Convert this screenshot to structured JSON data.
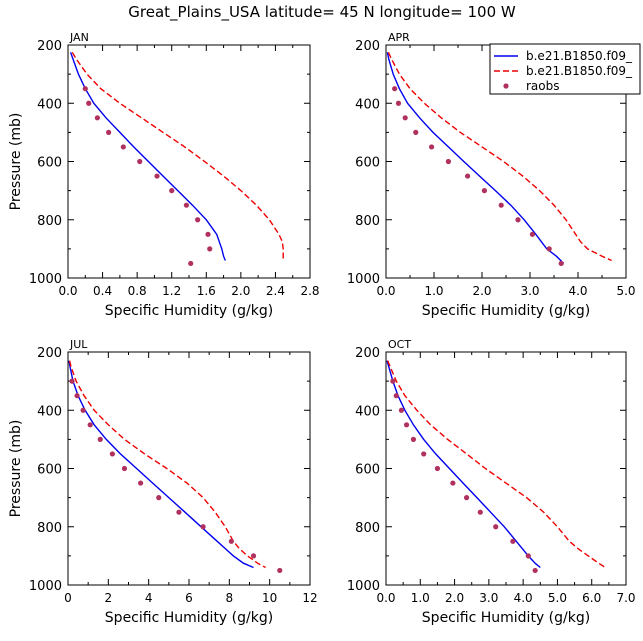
{
  "title": "Great_Plains_USA   latitude= 45 N longitude= 100 W",
  "legend": {
    "placement": "top-right of APR panel",
    "entries": [
      {
        "label": "b.e21.B1850.f09_",
        "series": "model1",
        "color": "#0000ee",
        "style": "solid"
      },
      {
        "label": "b.e21.B1850.f09_",
        "series": "model2",
        "color": "#ee0000",
        "style": "dashed"
      },
      {
        "label": "raobs",
        "series": "raobs",
        "color": "#b03060",
        "style": "markers"
      }
    ]
  },
  "chart_data": [
    {
      "type": "line",
      "panel": "JAN",
      "xlabel": "Specific Humidity (g/kg)",
      "ylabel": "Pressure (mb)",
      "xlim": [
        0,
        2.8
      ],
      "ylim": [
        1000,
        200
      ],
      "xticks": [
        "0.0",
        "0.4",
        "0.8",
        "1.2",
        "1.6",
        "2.0",
        "2.4",
        "2.8"
      ],
      "xtick_values": [
        0,
        0.4,
        0.8,
        1.2,
        1.6,
        2.0,
        2.4,
        2.8
      ],
      "yticks": [
        "200",
        "400",
        "600",
        "800",
        "1000"
      ],
      "ytick_values": [
        200,
        400,
        600,
        800,
        1000
      ],
      "series": [
        {
          "name": "model1",
          "pressure": [
            225,
            250,
            300,
            350,
            400,
            450,
            500,
            550,
            600,
            650,
            700,
            750,
            800,
            850,
            900,
            925,
            940
          ],
          "values": [
            0.03,
            0.06,
            0.12,
            0.2,
            0.3,
            0.44,
            0.6,
            0.76,
            0.93,
            1.1,
            1.27,
            1.44,
            1.6,
            1.72,
            1.78,
            1.8,
            1.82
          ]
        },
        {
          "name": "model2",
          "pressure": [
            225,
            250,
            300,
            350,
            400,
            450,
            500,
            550,
            600,
            650,
            700,
            750,
            800,
            850,
            875,
            900,
            940
          ],
          "values": [
            0.05,
            0.1,
            0.22,
            0.38,
            0.6,
            0.85,
            1.1,
            1.35,
            1.58,
            1.8,
            2.0,
            2.18,
            2.33,
            2.44,
            2.48,
            2.49,
            2.49
          ]
        },
        {
          "name": "raobs",
          "pressure": [
            350,
            400,
            450,
            500,
            550,
            600,
            650,
            700,
            750,
            800,
            850,
            900,
            950
          ],
          "values": [
            0.2,
            0.24,
            0.34,
            0.47,
            0.64,
            0.83,
            1.03,
            1.2,
            1.37,
            1.5,
            1.62,
            1.64,
            1.42
          ]
        }
      ]
    },
    {
      "type": "line",
      "panel": "APR",
      "xlabel": "Specific Humidity (g/kg)",
      "ylabel": "",
      "xlim": [
        0,
        5.0
      ],
      "ylim": [
        1000,
        200
      ],
      "xticks": [
        "0.0",
        "1.0",
        "2.0",
        "3.0",
        "4.0",
        "5.0"
      ],
      "xtick_values": [
        0,
        1,
        2,
        3,
        4,
        5
      ],
      "yticks": [
        "200",
        "400",
        "600",
        "800",
        "1000"
      ],
      "ytick_values": [
        200,
        400,
        600,
        800,
        1000
      ],
      "series": [
        {
          "name": "model1",
          "pressure": [
            225,
            250,
            300,
            350,
            400,
            450,
            500,
            550,
            600,
            650,
            700,
            750,
            800,
            850,
            900,
            925,
            950
          ],
          "values": [
            0.03,
            0.06,
            0.15,
            0.28,
            0.45,
            0.7,
            0.98,
            1.3,
            1.62,
            1.95,
            2.28,
            2.6,
            2.88,
            3.12,
            3.35,
            3.55,
            3.7
          ]
        },
        {
          "name": "model2",
          "pressure": [
            225,
            250,
            300,
            350,
            400,
            450,
            500,
            550,
            600,
            650,
            700,
            750,
            800,
            850,
            875,
            900,
            925,
            940
          ],
          "values": [
            0.05,
            0.12,
            0.28,
            0.5,
            0.8,
            1.15,
            1.55,
            2.0,
            2.45,
            2.85,
            3.2,
            3.5,
            3.75,
            3.95,
            4.05,
            4.2,
            4.5,
            4.7
          ]
        },
        {
          "name": "raobs",
          "pressure": [
            350,
            400,
            450,
            500,
            550,
            600,
            650,
            700,
            750,
            800,
            850,
            900,
            950
          ],
          "values": [
            0.18,
            0.26,
            0.4,
            0.62,
            0.95,
            1.3,
            1.7,
            2.05,
            2.4,
            2.75,
            3.05,
            3.4,
            3.65
          ]
        }
      ]
    },
    {
      "type": "line",
      "panel": "JUL",
      "xlabel": "Specific Humidity (g/kg)",
      "ylabel": "Pressure (mb)",
      "xlim": [
        0,
        12
      ],
      "ylim": [
        1000,
        200
      ],
      "xticks": [
        "0",
        "2",
        "4",
        "6",
        "8",
        "10",
        "12"
      ],
      "xtick_values": [
        0,
        2,
        4,
        6,
        8,
        10,
        12
      ],
      "yticks": [
        "200",
        "400",
        "600",
        "800",
        "1000"
      ],
      "ytick_values": [
        200,
        400,
        600,
        800,
        1000
      ],
      "series": [
        {
          "name": "model1",
          "pressure": [
            230,
            250,
            300,
            350,
            400,
            450,
            500,
            550,
            600,
            650,
            700,
            750,
            800,
            850,
            875,
            900,
            925,
            940
          ],
          "values": [
            0.05,
            0.1,
            0.25,
            0.5,
            0.85,
            1.3,
            1.9,
            2.6,
            3.4,
            4.2,
            5.0,
            5.8,
            6.6,
            7.4,
            7.8,
            8.2,
            8.7,
            9.2
          ]
        },
        {
          "name": "model2",
          "pressure": [
            230,
            250,
            300,
            350,
            400,
            450,
            500,
            550,
            600,
            650,
            700,
            750,
            800,
            850,
            875,
            900,
            925,
            940
          ],
          "values": [
            0.08,
            0.15,
            0.4,
            0.8,
            1.3,
            2.0,
            2.8,
            3.8,
            4.9,
            5.9,
            6.7,
            7.3,
            7.8,
            8.2,
            8.5,
            8.9,
            9.4,
            9.8
          ]
        },
        {
          "name": "raobs",
          "pressure": [
            300,
            350,
            400,
            450,
            500,
            550,
            600,
            650,
            700,
            750,
            800,
            850,
            900,
            950
          ],
          "values": [
            0.2,
            0.45,
            0.75,
            1.1,
            1.6,
            2.2,
            2.8,
            3.6,
            4.5,
            5.5,
            6.7,
            8.1,
            9.2,
            10.5
          ]
        }
      ]
    },
    {
      "type": "line",
      "panel": "OCT",
      "xlabel": "Specific Humidity (g/kg)",
      "ylabel": "",
      "xlim": [
        0,
        7.0
      ],
      "ylim": [
        1000,
        200
      ],
      "xticks": [
        "0.0",
        "1.0",
        "2.0",
        "3.0",
        "4.0",
        "5.0",
        "6.0",
        "7.0"
      ],
      "xtick_values": [
        0,
        1,
        2,
        3,
        4,
        5,
        6,
        7
      ],
      "yticks": [
        "200",
        "400",
        "600",
        "800",
        "1000"
      ],
      "ytick_values": [
        200,
        400,
        600,
        800,
        1000
      ],
      "series": [
        {
          "name": "model1",
          "pressure": [
            230,
            250,
            300,
            350,
            400,
            450,
            500,
            550,
            600,
            650,
            700,
            750,
            800,
            850,
            900,
            925,
            940
          ],
          "values": [
            0.03,
            0.08,
            0.2,
            0.35,
            0.55,
            0.8,
            1.1,
            1.45,
            1.85,
            2.25,
            2.65,
            3.05,
            3.45,
            3.8,
            4.15,
            4.35,
            4.5
          ]
        },
        {
          "name": "model2",
          "pressure": [
            230,
            250,
            300,
            350,
            400,
            450,
            500,
            550,
            600,
            650,
            700,
            750,
            800,
            850,
            875,
            900,
            925,
            940
          ],
          "values": [
            0.05,
            0.12,
            0.3,
            0.55,
            0.9,
            1.3,
            1.8,
            2.35,
            2.9,
            3.5,
            4.1,
            4.6,
            5.0,
            5.35,
            5.6,
            5.9,
            6.2,
            6.4
          ]
        },
        {
          "name": "raobs",
          "pressure": [
            300,
            350,
            400,
            450,
            500,
            550,
            600,
            650,
            700,
            750,
            800,
            850,
            900,
            950
          ],
          "values": [
            0.2,
            0.3,
            0.45,
            0.6,
            0.8,
            1.1,
            1.5,
            1.95,
            2.35,
            2.75,
            3.2,
            3.7,
            4.15,
            4.35
          ]
        }
      ]
    }
  ]
}
